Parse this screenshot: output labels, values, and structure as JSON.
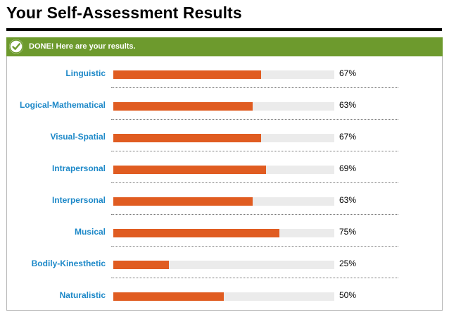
{
  "page": {
    "title": "Your Self-Assessment Results"
  },
  "banner": {
    "text": "DONE! Here are your results.",
    "icon": "check-icon",
    "color": "#6d9a2d"
  },
  "colors": {
    "label": "#1c88c8",
    "bar_fill": "#e05c21",
    "bar_track": "#ebebeb"
  },
  "results": [
    {
      "label": "Linguistic",
      "percent_label": "67%",
      "value": 67
    },
    {
      "label": "Logical-Mathematical",
      "percent_label": "63%",
      "value": 63
    },
    {
      "label": "Visual-Spatial",
      "percent_label": "67%",
      "value": 67
    },
    {
      "label": "Intrapersonal",
      "percent_label": "69%",
      "value": 69
    },
    {
      "label": "Interpersonal",
      "percent_label": "63%",
      "value": 63
    },
    {
      "label": "Musical",
      "percent_label": "75%",
      "value": 75
    },
    {
      "label": "Bodily-Kinesthetic",
      "percent_label": "25%",
      "value": 25
    },
    {
      "label": "Naturalistic",
      "percent_label": "50%",
      "value": 50
    }
  ]
}
